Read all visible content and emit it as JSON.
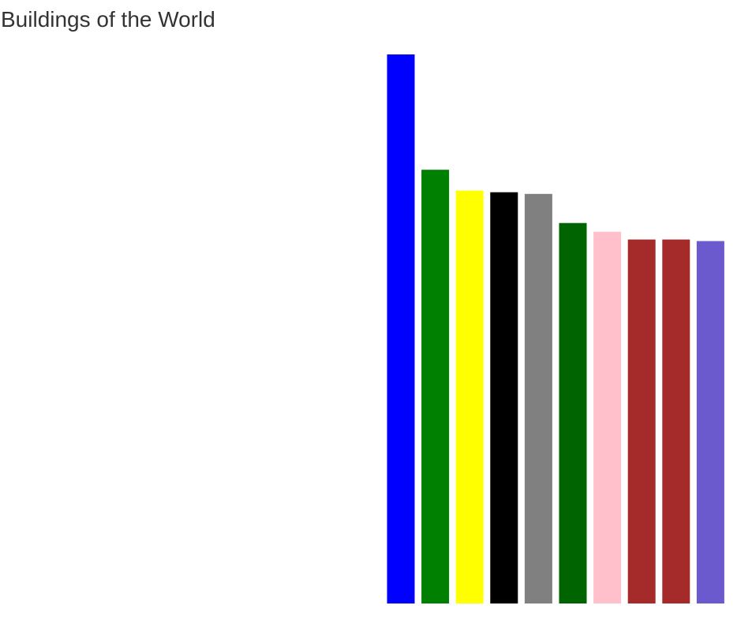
{
  "chart_data": {
    "type": "bar",
    "title": "Buildings of the World",
    "xlabel": "",
    "ylabel": "",
    "ylim": [
      0,
      100
    ],
    "grid": false,
    "legend": "none",
    "values": [
      100,
      79,
      75.2,
      74.9,
      74.6,
      69.3,
      67.7,
      66.3,
      66.3,
      66
    ],
    "colors": [
      "#0000ff",
      "#008000",
      "#ffff00",
      "#000000",
      "#808080",
      "#006400",
      "#ffc0cb",
      "#a52a2a",
      "#a52a2a",
      "#6a5acd"
    ]
  }
}
